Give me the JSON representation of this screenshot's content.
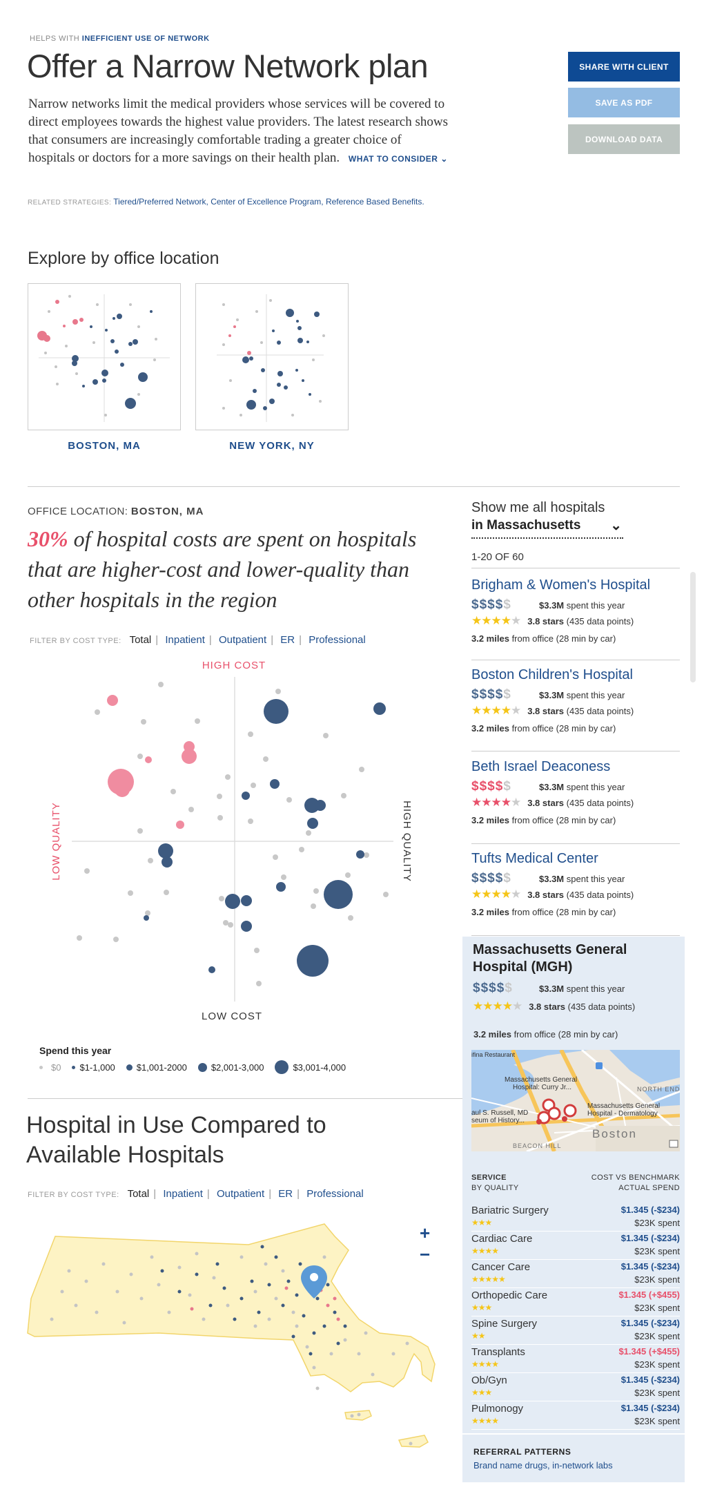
{
  "header": {
    "kicker_prefix": "HELPS WITH",
    "kicker_highlight": "INEFFICIENT USE OF NETWORK",
    "title": "Offer a Narrow Network plan",
    "description": "Narrow networks limit the medical providers whose services will be covered to direct employees towards the highest value providers. The latest research shows that consumers are increasingly comfortable trading a greater choice of hospitals or doctors for a more savings on their health plan.",
    "what_to_consider": "WHAT TO CONSIDER",
    "related_label": "RELATED STRATEGIES:",
    "related_links": "Tiered/Preferred Network, Center of Excellence Program, Reference Based Benefits."
  },
  "actions": {
    "share": "SHARE WITH CLIENT",
    "save_pdf": "SAVE AS PDF",
    "download": "DOWNLOAD DATA"
  },
  "explore": {
    "heading": "Explore by office location",
    "locations": [
      "BOSTON, MA",
      "NEW YORK, NY"
    ]
  },
  "office": {
    "label": "OFFICE LOCATION:",
    "value": "BOSTON, MA",
    "headline_pct": "30%",
    "headline_rest": " of hospital costs are spent on hospitals that are higher-cost and lower-quality than other hospitals in the region"
  },
  "filters": {
    "label": "FILTER BY COST TYPE:",
    "items": [
      "Total",
      "Inpatient",
      "Outpatient",
      "ER",
      "Professional"
    ]
  },
  "quadrant": {
    "high_cost": "HIGH COST",
    "low_cost": "LOW COST",
    "low_quality": "LOW QUALITY",
    "high_quality": "HIGH QUALITY"
  },
  "legend": {
    "title": "Spend this year",
    "items": [
      "$0",
      "$1-1,000",
      "$1,001-2000",
      "$2,001-3,000",
      "$3,001-4,000"
    ]
  },
  "compare": {
    "heading_line1": "Hospital in Use Compared to",
    "heading_line2": "Available Hospitals"
  },
  "map": {
    "zoom_in": "+",
    "zoom_out": "−"
  },
  "sidebar": {
    "show_label": "Show me all hospitals",
    "region": "in Massachusetts",
    "count": "1-20 OF 60",
    "hospitals": [
      {
        "name": "Brigham & Women's Hospital",
        "dollars_on": "$$$$",
        "dollars_off": "$",
        "spent": "$3.3M",
        "spent_label": "spent this year",
        "stars": "3.8 stars",
        "points": "(435 data points)",
        "distance": "3.2 miles",
        "distance_label": "from office (28 min by car)",
        "color": "#1f4e8c"
      },
      {
        "name": "Boston Children's Hospital",
        "dollars_on": "$$$$",
        "dollars_off": "$",
        "spent": "$3.3M",
        "spent_label": "spent this year",
        "stars": "3.8 stars",
        "points": "(435 data points)",
        "distance": "3.2 miles",
        "distance_label": "from office (28 min by car)",
        "color": "#1f4e8c"
      },
      {
        "name": "Beth Israel Deaconess",
        "dollars_on": "$$$$",
        "dollars_off": "$",
        "spent": "$3.3M",
        "spent_label": "spent this year",
        "stars": "3.8 stars",
        "points": "(435 data points)",
        "distance": "3.2 miles",
        "distance_label": "from office (28 min by car)",
        "color": "#e8506a"
      },
      {
        "name": "Tufts Medical Center",
        "dollars_on": "$$$$",
        "dollars_off": "$",
        "spent": "$3.3M",
        "spent_label": "spent this year",
        "stars": "3.8 stars",
        "points": "(435 data points)",
        "distance": "3.2 miles",
        "distance_label": "from office (28 min by car)",
        "color": "#1f4e8c"
      }
    ],
    "selected": {
      "name": "Massachusetts General Hospital (MGH)",
      "dollars_on": "$$$$",
      "dollars_off": "$",
      "spent": "$3.3M",
      "spent_label": "spent this year",
      "stars": "3.8 stars",
      "points": "(435 data points)",
      "distance": "3.2 miles",
      "distance_label": "from office (28 min by car)",
      "map_labels": {
        "l1": "Massachusetts General",
        "l2": "Hospital: Curry Jr...",
        "l3": "Massachusetts General",
        "l4": "Hospital - Dermatology",
        "l5": "NORTH END",
        "l6": "Boston",
        "l7": "BEACON HILL",
        "l8": "aul S. Russell, MD",
        "l9": "seum of History...",
        "l10": "ifina Restaurant"
      }
    },
    "service_header": {
      "left1": "SERVICE",
      "left2": "BY QUALITY",
      "right1": "COST VS BENCHMARK",
      "right2": "ACTUAL SPEND"
    },
    "services": [
      {
        "name": "Bariatric Surgery",
        "stars": "★★★",
        "cost": "$1.345 (-$234)",
        "spent": "$23K spent",
        "color": "#1f4e8c"
      },
      {
        "name": "Cardiac Care",
        "stars": "★★★★",
        "cost": "$1.345 (-$234)",
        "spent": "$23K spent",
        "color": "#1f4e8c"
      },
      {
        "name": "Cancer Care",
        "stars": "★★★★★",
        "cost": "$1.345 (-$234)",
        "spent": "$23K spent",
        "color": "#1f4e8c"
      },
      {
        "name": "Orthopedic Care",
        "stars": "★★★",
        "cost": "$1.345 (+$455)",
        "spent": "$23K spent",
        "color": "#e8506a"
      },
      {
        "name": "Spine Surgery",
        "stars": "★★",
        "cost": "$1.345 (-$234)",
        "spent": "$23K spent",
        "color": "#1f4e8c"
      },
      {
        "name": "Transplants",
        "stars": "★★★★",
        "cost": "$1.345 (+$455)",
        "spent": "$23K spent",
        "color": "#e8506a"
      },
      {
        "name": "Ob/Gyn",
        "stars": "★★★",
        "cost": "$1.345 (-$234)",
        "spent": "$23K spent",
        "color": "#1f4e8c"
      },
      {
        "name": "Pulmonogy",
        "stars": "★★★★",
        "cost": "$1.345 (-$234)",
        "spent": "$23K spent",
        "color": "#1f4e8c"
      }
    ],
    "referral": {
      "title": "REFERRAL PATTERNS",
      "text": "Brand name drugs, in-network labs"
    }
  },
  "colors": {
    "brand_blue": "#1f4e8c",
    "pink": "#e8506a",
    "dot_navy": "#3d5a80",
    "dot_gray": "#c4c4c4",
    "map_fill": "#fdf3c4",
    "panel_bg": "#e4ecf5"
  }
}
